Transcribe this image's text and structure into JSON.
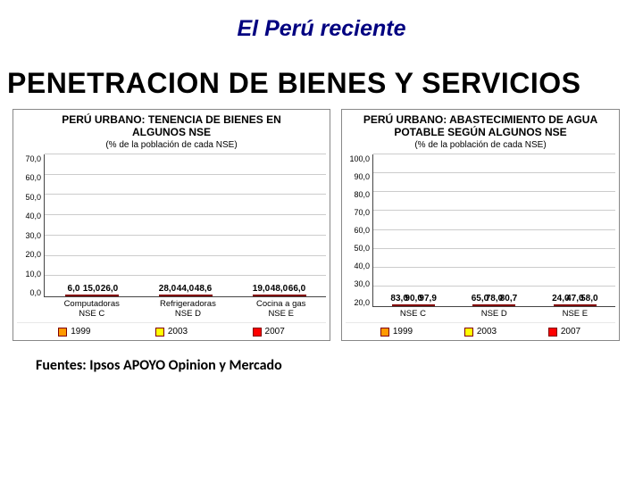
{
  "supertitle": "El Perú reciente",
  "title": "PENETRACION DE BIENES Y SERVICIOS",
  "source": "Fuentes:  Ipsos APOYO Opinion y Mercado",
  "colors": {
    "c1999": "#ff9900",
    "c2003": "#ffff00",
    "c2007": "#ff0000",
    "bar_border": "#800000",
    "grid": "#cccccc",
    "axis": "#444444",
    "title_color": "#000080"
  },
  "legend": [
    {
      "label": "1999",
      "colorKey": "c1999"
    },
    {
      "label": "2003",
      "colorKey": "c2003"
    },
    {
      "label": "2007",
      "colorKey": "c2007"
    }
  ],
  "chart_left": {
    "title_line1": "PERÚ URBANO: TENENCIA DE BIENES EN",
    "title_line2": "ALGUNOS NSE",
    "subtitle": "(% de la población de cada NSE)",
    "ymin": 0,
    "ymax": 70,
    "ystep": 10,
    "value_decimals": 1,
    "cat_two_line": true,
    "categories": [
      {
        "label_l1": "Computadoras",
        "label_l2": "NSE C",
        "v": [
          6.0,
          15.0,
          26.0
        ]
      },
      {
        "label_l1": "Refrigeradoras",
        "label_l2": "NSE D",
        "v": [
          28.0,
          44.0,
          48.6
        ]
      },
      {
        "label_l1": "Cocina a gas",
        "label_l2": "NSE E",
        "v": [
          19.0,
          48.0,
          66.0
        ]
      }
    ]
  },
  "chart_right": {
    "title_line1": "PERÚ URBANO: ABASTECIMIENTO DE AGUA",
    "title_line2": "POTABLE SEGÚN ALGUNOS NSE",
    "subtitle": "(% de la población de cada NSE)",
    "ymin": 20,
    "ymax": 100,
    "ystep": 10,
    "value_decimals": 1,
    "cat_two_line": false,
    "categories": [
      {
        "label_l1": "NSE C",
        "v": [
          83.0,
          90.0,
          97.9
        ]
      },
      {
        "label_l1": "NSE D",
        "v": [
          65.0,
          78.0,
          80.7
        ]
      },
      {
        "label_l1": "NSE E",
        "v": [
          24.0,
          47.0,
          58.0
        ]
      }
    ]
  }
}
